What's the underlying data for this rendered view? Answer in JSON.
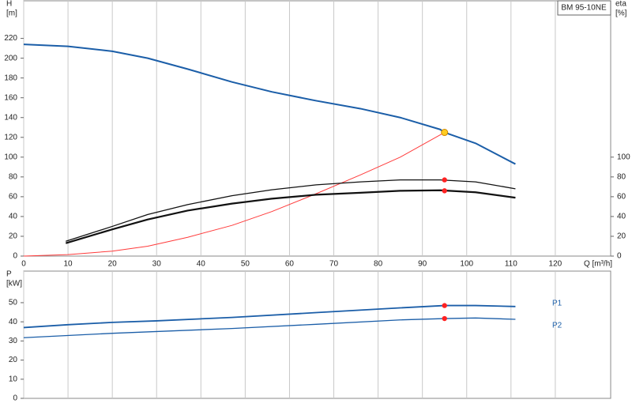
{
  "chart_data": [
    {
      "type": "line",
      "title": "BM 95-10NE",
      "ylabel": [
        "H",
        "[m]"
      ],
      "y2label": [
        "eta",
        "[%]"
      ],
      "xlabel": "Q [m³/h]",
      "xlim": [
        0,
        132.5
      ],
      "xticks": [
        0,
        10,
        20,
        30,
        40,
        50,
        60,
        70,
        80,
        90,
        100,
        110,
        120
      ],
      "ylim": [
        0,
        258
      ],
      "yticks": [
        0,
        20,
        40,
        60,
        80,
        100,
        120,
        140,
        160,
        180,
        200,
        220
      ],
      "y2lim": [
        0,
        258
      ],
      "y2ticks": [
        0,
        20,
        40,
        60,
        80,
        100
      ],
      "grid": "x",
      "xtick_labels": true,
      "series": [
        {
          "color": "#1b5ea8",
          "width": 2,
          "x": [
            0,
            10,
            20,
            28,
            37,
            47,
            56,
            66,
            76,
            85,
            94,
            95,
            102,
            111
          ],
          "values": [
            214,
            212,
            207,
            200,
            189,
            176,
            166,
            157,
            149,
            140,
            128,
            125,
            114,
            93
          ]
        },
        {
          "color": "#ff3b3b",
          "width": 1,
          "x": [
            0,
            10,
            20,
            28,
            37,
            47,
            56,
            66,
            76,
            85,
            95
          ],
          "values": [
            0,
            1.5,
            5,
            10,
            19,
            31,
            45,
            63,
            82,
            100,
            125
          ]
        },
        {
          "color": "#111111",
          "width": 1.3,
          "axis": "y2",
          "x": [
            9.5,
            20,
            28,
            37,
            47,
            56,
            66,
            76,
            85,
            94,
            102,
            111
          ],
          "values": [
            15,
            30,
            42,
            52,
            61,
            67,
            72,
            75,
            77,
            77,
            75,
            68
          ]
        },
        {
          "color": "#111111",
          "width": 2.2,
          "axis": "y2",
          "x": [
            9.5,
            20,
            28,
            37,
            47,
            56,
            66,
            76,
            85,
            94,
            102,
            111
          ],
          "values": [
            13,
            27,
            37,
            46,
            53,
            58,
            62,
            64,
            66,
            66.5,
            64.5,
            59
          ]
        }
      ],
      "points": [
        {
          "x": 95,
          "y": 125,
          "color": "#ffcc22",
          "axis": "y"
        },
        {
          "x": 95,
          "y": 77,
          "color": "#ff2222",
          "axis": "y2"
        },
        {
          "x": 95,
          "y": 66,
          "color": "#ff2222",
          "axis": "y2"
        }
      ]
    },
    {
      "type": "line",
      "ylabel": [
        "P",
        "[kW]"
      ],
      "xlim": [
        0,
        132.5
      ],
      "xticks": [
        0,
        10,
        20,
        30,
        40,
        50,
        60,
        70,
        80,
        90,
        100,
        110,
        120
      ],
      "ylim": [
        0,
        66.5
      ],
      "yticks": [
        0,
        10,
        20,
        30,
        40,
        50
      ],
      "grid": "x",
      "xtick_labels": false,
      "series": [
        {
          "name": "P1",
          "color": "#1b5ea8",
          "width": 1.8,
          "x": [
            0,
            10,
            20,
            30,
            47,
            66,
            85,
            95,
            102,
            111
          ],
          "values": [
            37,
            38.5,
            39.7,
            40.5,
            42.3,
            44.8,
            47.3,
            48.5,
            48.5,
            48
          ]
        },
        {
          "name": "P2",
          "color": "#1b5ea8",
          "width": 1.3,
          "x": [
            0,
            20,
            47,
            66,
            85,
            95,
            102,
            111
          ],
          "values": [
            31.7,
            34,
            36.5,
            38.7,
            41,
            41.7,
            42,
            41.3
          ]
        }
      ],
      "points": [
        {
          "x": 95,
          "y": 48.5,
          "color": "#ff2222",
          "axis": "y"
        },
        {
          "x": 95,
          "y": 41.7,
          "color": "#ff2222",
          "axis": "y"
        }
      ]
    }
  ]
}
